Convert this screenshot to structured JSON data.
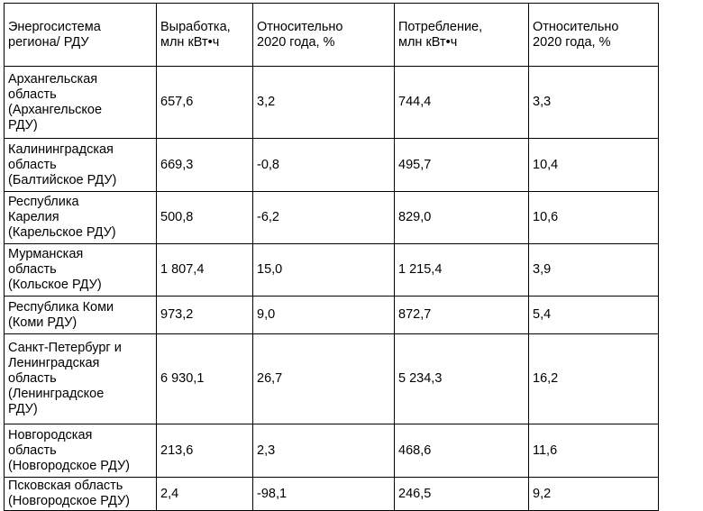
{
  "table": {
    "headers": [
      "Энергосистема\nрегиона/ РДУ",
      "Выработка,\nмлн кВт•ч",
      "Относительно\n2020 года, %",
      "Потребление,\nмлн кВт•ч",
      "Относительно\n2020 года, %"
    ],
    "rows": [
      [
        "Архангельская\nобласть\n(Архангельское\nРДУ)",
        "657,6",
        "3,2",
        "744,4",
        "3,3"
      ],
      [
        "Калининградская\nобласть\n(Балтийское РДУ)",
        "669,3",
        "-0,8",
        "495,7",
        "10,4"
      ],
      [
        "Республика\nКарелия\n(Карельское РДУ)",
        "500,8",
        "-6,2",
        "829,0",
        "10,6"
      ],
      [
        "Мурманская\nобласть\n(Кольское РДУ)",
        "1 807,4",
        "15,0",
        "1 215,4",
        "3,9"
      ],
      [
        "Республика Коми\n(Коми РДУ)",
        "973,2",
        "9,0",
        "872,7",
        "5,4"
      ],
      [
        "Санкт-Петербург    и\nЛенинградская\nобласть\n(Ленинградское\nРДУ)",
        "6 930,1",
        "26,7",
        "5 234,3",
        "16,2"
      ],
      [
        "Новгородская\nобласть\n(Новгородское РДУ)",
        "213,6",
        "2,3",
        "468,6",
        "11,6"
      ],
      [
        "Псковская   область\n(Новгородское РДУ)",
        "2,4",
        "-98,1",
        "246,5",
        "9,2"
      ]
    ]
  }
}
